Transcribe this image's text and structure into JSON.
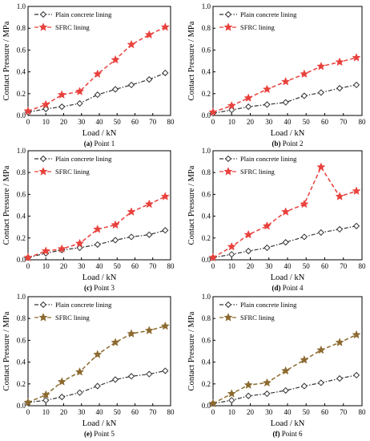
{
  "chart_data": [
    {
      "type": "line",
      "caption_letter": "(a)",
      "caption_text": "Point 1",
      "xlabel": "Load / kN",
      "ylabel": "Contact Pressure / MPa",
      "xlim": [
        0,
        80
      ],
      "ylim": [
        0,
        1.0
      ],
      "xticks": [
        0,
        10,
        20,
        30,
        40,
        50,
        60,
        70,
        80
      ],
      "yticks": [
        0.0,
        0.2,
        0.4,
        0.6,
        0.8,
        1.0
      ],
      "legend_position": "top-left",
      "series": [
        {
          "name": "Plain concrete lining",
          "marker": "diamond",
          "color": "#333333",
          "dash": "dashdot",
          "x": [
            0,
            10,
            19,
            29,
            39,
            49,
            58,
            68,
            77
          ],
          "y": [
            0.03,
            0.06,
            0.08,
            0.11,
            0.19,
            0.24,
            0.28,
            0.33,
            0.39
          ]
        },
        {
          "name": "SFRC lining",
          "marker": "star",
          "color": "#e8413c",
          "dash": "dash",
          "x": [
            0,
            10,
            19,
            29,
            39,
            49,
            58,
            68,
            77
          ],
          "y": [
            0.04,
            0.1,
            0.19,
            0.22,
            0.38,
            0.51,
            0.65,
            0.74,
            0.81
          ]
        }
      ]
    },
    {
      "type": "line",
      "caption_letter": "(b)",
      "caption_text": "Point 2",
      "xlabel": "Load / kN",
      "ylabel": "Contact Pressure / MPa",
      "xlim": [
        0,
        80
      ],
      "ylim": [
        0,
        1.0
      ],
      "xticks": [
        0,
        10,
        20,
        30,
        40,
        50,
        60,
        70,
        80
      ],
      "yticks": [
        0.0,
        0.2,
        0.4,
        0.6,
        0.8,
        1.0
      ],
      "legend_position": "top-left",
      "series": [
        {
          "name": "Plain concrete lining",
          "marker": "diamond",
          "color": "#333333",
          "dash": "dashdot",
          "x": [
            0,
            10,
            19,
            29,
            39,
            49,
            58,
            68,
            77
          ],
          "y": [
            0.02,
            0.05,
            0.08,
            0.1,
            0.12,
            0.18,
            0.21,
            0.25,
            0.28
          ]
        },
        {
          "name": "SFRC lining",
          "marker": "star",
          "color": "#e8413c",
          "dash": "dash",
          "x": [
            0,
            10,
            19,
            29,
            39,
            49,
            58,
            68,
            77
          ],
          "y": [
            0.03,
            0.09,
            0.16,
            0.24,
            0.31,
            0.38,
            0.45,
            0.49,
            0.53
          ]
        }
      ]
    },
    {
      "type": "line",
      "caption_letter": "(c)",
      "caption_text": "Point 3",
      "xlabel": "Load / kN",
      "ylabel": "Contact Pressure / MPa",
      "xlim": [
        0,
        80
      ],
      "ylim": [
        0,
        1.0
      ],
      "xticks": [
        0,
        10,
        20,
        30,
        40,
        50,
        60,
        70,
        80
      ],
      "yticks": [
        0.0,
        0.2,
        0.4,
        0.6,
        0.8,
        1.0
      ],
      "legend_position": "top-left",
      "series": [
        {
          "name": "Plain concrete lining",
          "marker": "diamond",
          "color": "#333333",
          "dash": "dashdot",
          "x": [
            0,
            10,
            19,
            29,
            39,
            49,
            58,
            68,
            77
          ],
          "y": [
            0.02,
            0.06,
            0.09,
            0.11,
            0.14,
            0.18,
            0.21,
            0.23,
            0.27
          ]
        },
        {
          "name": "SFRC lining",
          "marker": "star",
          "color": "#e8413c",
          "dash": "dash",
          "x": [
            0,
            10,
            19,
            29,
            39,
            49,
            58,
            68,
            77
          ],
          "y": [
            0.02,
            0.08,
            0.1,
            0.15,
            0.28,
            0.32,
            0.44,
            0.51,
            0.58
          ]
        }
      ]
    },
    {
      "type": "line",
      "caption_letter": "(d)",
      "caption_text": "Point 4",
      "xlabel": "Load / kN",
      "ylabel": "Contact Pressure / MPa",
      "xlim": [
        0,
        80
      ],
      "ylim": [
        0,
        1.0
      ],
      "xticks": [
        0,
        10,
        20,
        30,
        40,
        50,
        60,
        70,
        80
      ],
      "yticks": [
        0.0,
        0.2,
        0.4,
        0.6,
        0.8,
        1.0
      ],
      "legend_position": "top-left",
      "series": [
        {
          "name": "Plain concrete lining",
          "marker": "diamond",
          "color": "#333333",
          "dash": "dashdot",
          "x": [
            0,
            10,
            19,
            29,
            39,
            49,
            58,
            68,
            77
          ],
          "y": [
            0.02,
            0.05,
            0.08,
            0.11,
            0.16,
            0.21,
            0.25,
            0.28,
            0.31
          ]
        },
        {
          "name": "SFRC lining",
          "marker": "star",
          "color": "#e8413c",
          "dash": "dash",
          "x": [
            0,
            10,
            19,
            29,
            39,
            49,
            58,
            68,
            77
          ],
          "y": [
            0.02,
            0.12,
            0.23,
            0.31,
            0.44,
            0.51,
            0.85,
            0.58,
            0.63
          ]
        }
      ]
    },
    {
      "type": "line",
      "caption_letter": "(e)",
      "caption_text": "Point 5",
      "xlabel": "Load / kN",
      "ylabel": "Contact Pressure / MPa",
      "xlim": [
        0,
        80
      ],
      "ylim": [
        0,
        1.0
      ],
      "xticks": [
        0,
        10,
        20,
        30,
        40,
        50,
        60,
        70,
        80
      ],
      "yticks": [
        0.0,
        0.2,
        0.4,
        0.6,
        0.8,
        1.0
      ],
      "legend_position": "top-left",
      "series": [
        {
          "name": "Plain concrete lining",
          "marker": "diamond",
          "color": "#333333",
          "dash": "dashdot",
          "x": [
            0,
            10,
            19,
            29,
            39,
            49,
            58,
            68,
            77
          ],
          "y": [
            0.03,
            0.05,
            0.08,
            0.12,
            0.18,
            0.24,
            0.27,
            0.29,
            0.32
          ]
        },
        {
          "name": "SFRC lining",
          "marker": "star",
          "color": "#8c6a2f",
          "dash": "dash",
          "x": [
            0,
            10,
            19,
            29,
            39,
            49,
            58,
            68,
            77
          ],
          "y": [
            0.03,
            0.1,
            0.22,
            0.31,
            0.47,
            0.58,
            0.66,
            0.69,
            0.73
          ]
        }
      ]
    },
    {
      "type": "line",
      "caption_letter": "(f)",
      "caption_text": "Point 6",
      "xlabel": "Load / kN",
      "ylabel": "Contact Pressure / MPa",
      "xlim": [
        0,
        80
      ],
      "ylim": [
        0,
        1.0
      ],
      "xticks": [
        0,
        10,
        20,
        30,
        40,
        50,
        60,
        70,
        80
      ],
      "yticks": [
        0.0,
        0.2,
        0.4,
        0.6,
        0.8,
        1.0
      ],
      "legend_position": "top-left",
      "series": [
        {
          "name": "Plain concrete lining",
          "marker": "diamond",
          "color": "#333333",
          "dash": "dashdot",
          "x": [
            0,
            10,
            19,
            29,
            39,
            49,
            58,
            68,
            77
          ],
          "y": [
            0.02,
            0.05,
            0.09,
            0.11,
            0.14,
            0.18,
            0.21,
            0.25,
            0.28
          ]
        },
        {
          "name": "SFRC lining",
          "marker": "star",
          "color": "#8c6a2f",
          "dash": "dash",
          "x": [
            0,
            10,
            19,
            29,
            39,
            49,
            58,
            68,
            77
          ],
          "y": [
            0.02,
            0.11,
            0.19,
            0.21,
            0.32,
            0.42,
            0.51,
            0.58,
            0.65
          ]
        }
      ]
    }
  ]
}
